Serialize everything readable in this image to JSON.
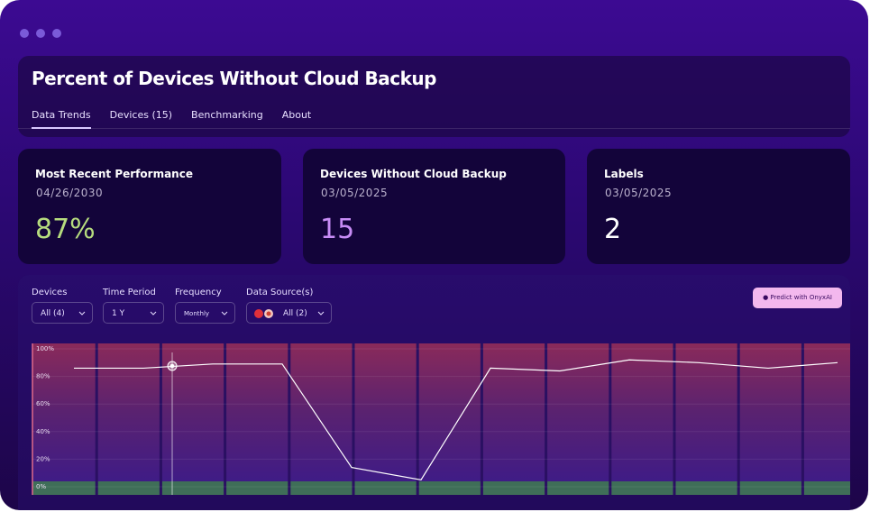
{
  "header": {
    "title": "Percent of Devices Without Cloud Backup",
    "tabs": [
      "Data Trends",
      "Devices (15)",
      "Benchmarking",
      "About"
    ]
  },
  "cards": [
    {
      "label": "Most Recent Performance",
      "date": "04/26/2030",
      "value": "87%"
    },
    {
      "label": "Devices Without Cloud Backup",
      "date": "03/05/2025",
      "value": "15"
    },
    {
      "label": "Labels",
      "date": "03/05/2025",
      "value": "2"
    }
  ],
  "filters": [
    {
      "label": "Devices",
      "value": "All (4)"
    },
    {
      "label": "Time Period",
      "value": "1 Y"
    },
    {
      "label": "Frequency",
      "value": "Monthly"
    },
    {
      "label": "Data Source(s)",
      "value": "All (2)"
    }
  ],
  "button": "Predict with OnyxAI",
  "chart_data": {
    "type": "line",
    "categories": [
      null,
      null,
      null,
      null,
      null,
      null,
      null,
      null,
      null,
      null,
      null,
      null
    ],
    "series": [
      {
        "color": "#ffffff",
        "values": [
          86,
          86,
          89,
          89,
          14,
          5,
          86,
          84,
          92,
          90,
          86,
          90
        ]
      }
    ],
    "ylim": [
      0,
      100
    ],
    "yticks": [
      {
        "value": 0,
        "label": "0%"
      },
      {
        "value": 20,
        "label": "20%"
      },
      {
        "value": 40,
        "label": "40%"
      },
      {
        "value": 60,
        "label": "60%"
      },
      {
        "value": 80,
        "label": "80%"
      },
      {
        "value": 100,
        "label": "100%"
      }
    ],
    "grid": true
  }
}
